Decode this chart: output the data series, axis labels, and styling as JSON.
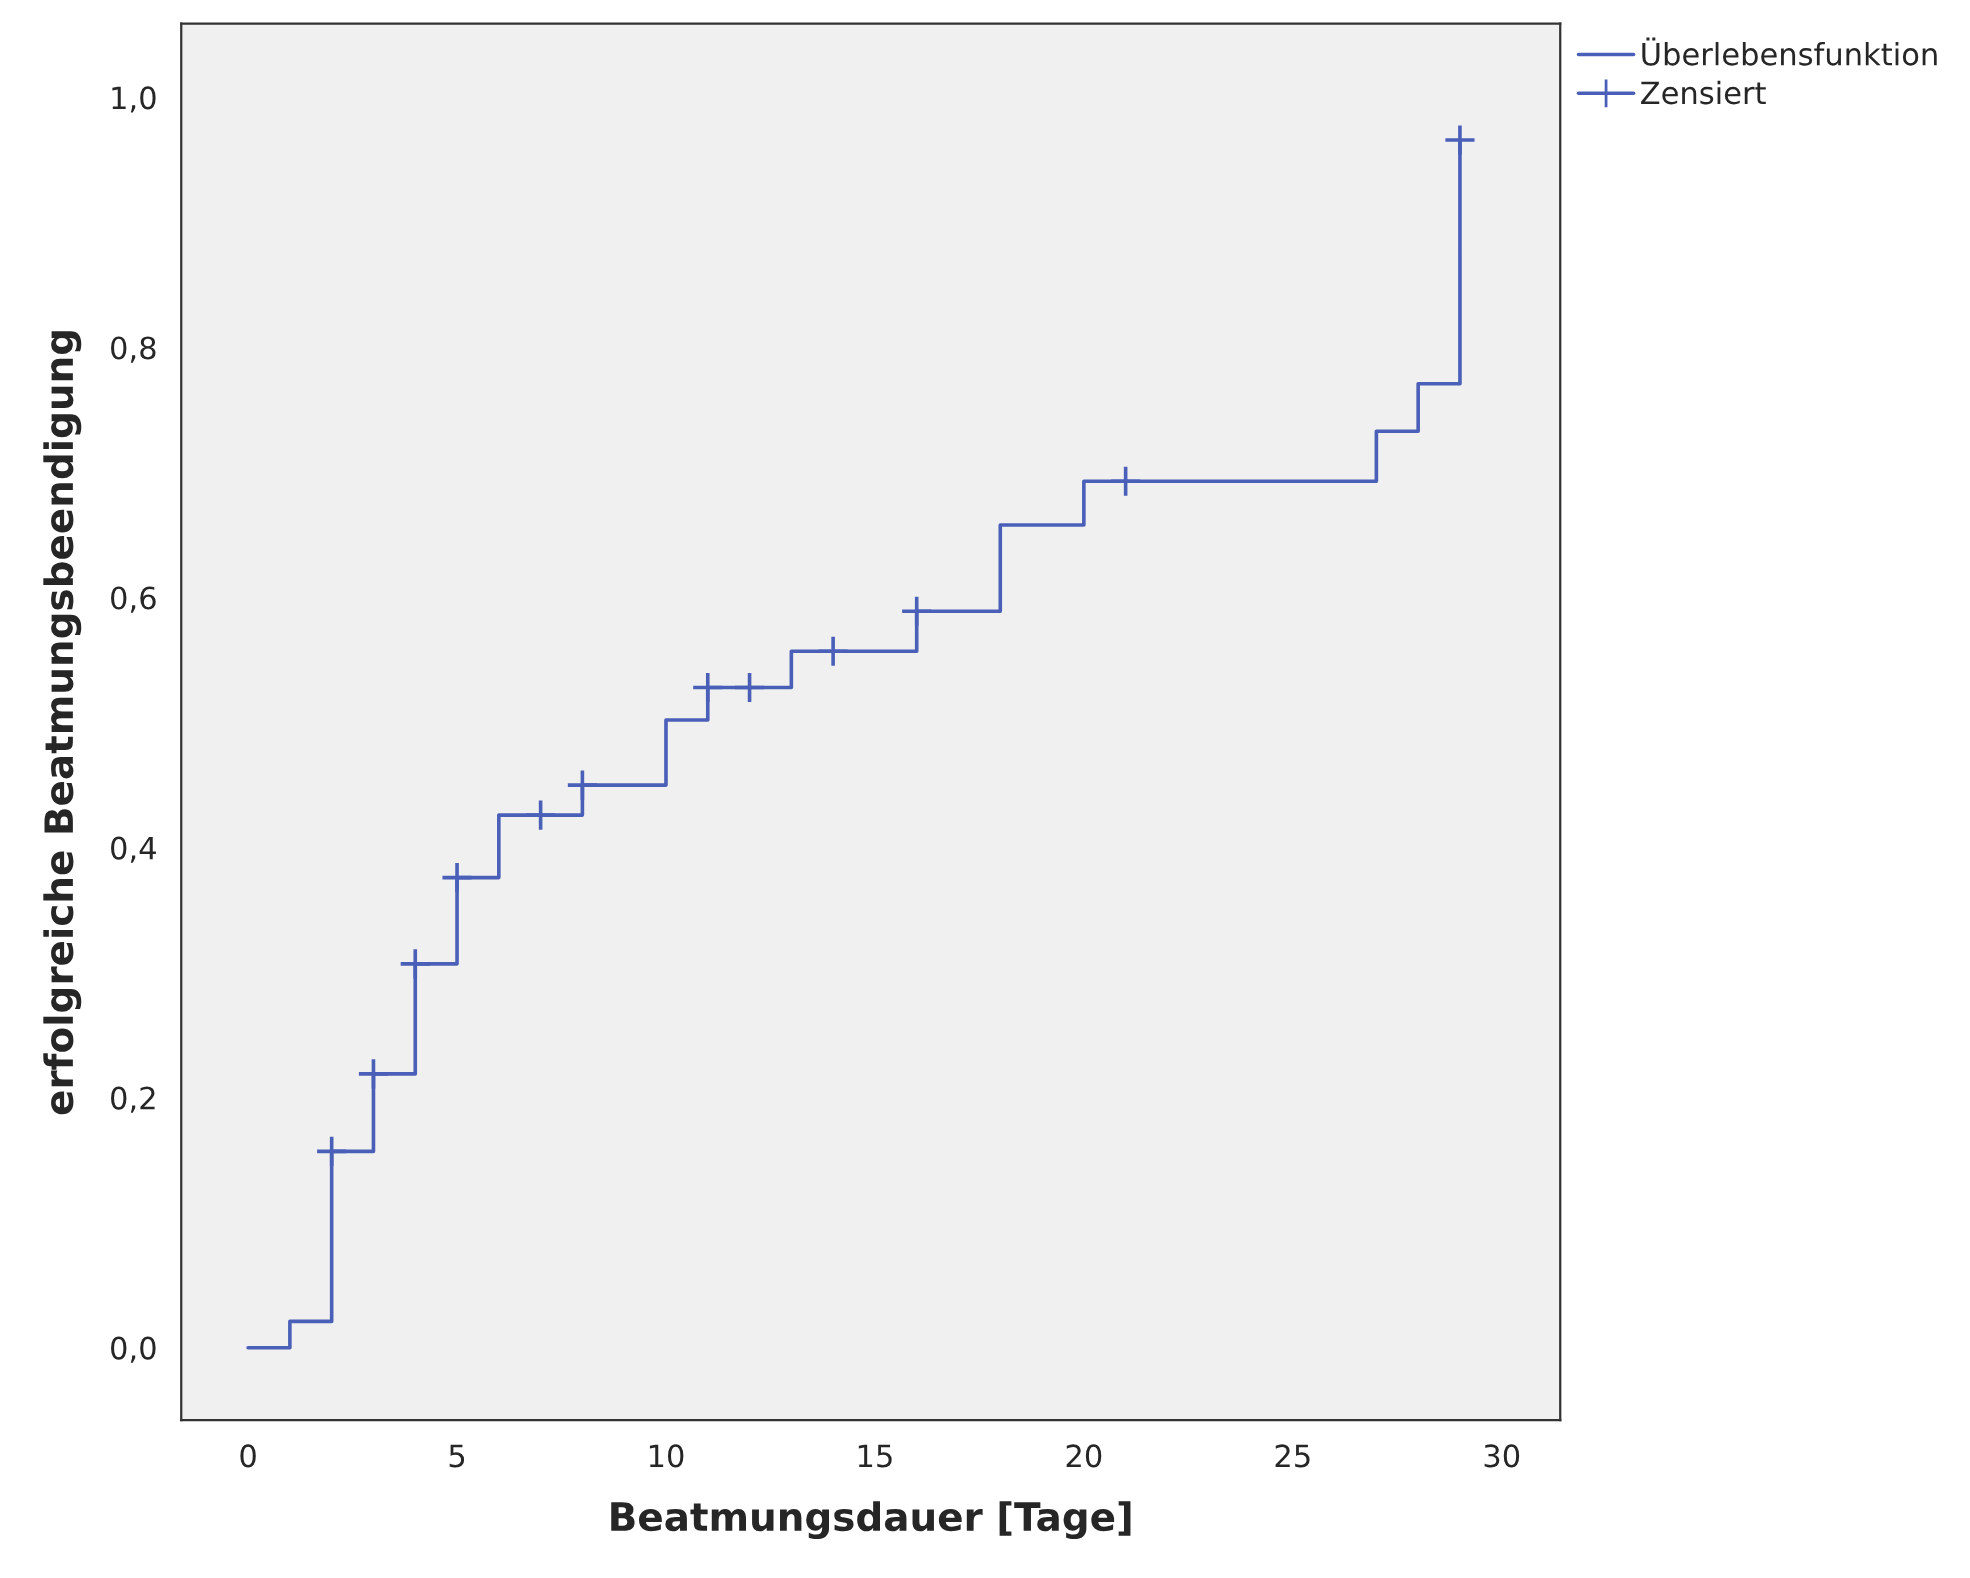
{
  "chart_data": {
    "type": "step",
    "xlabel": "Beatmungsdauer [Tage]",
    "ylabel": "erfolgreiche Beatmungsbeendigung",
    "xlim": [
      -1.6,
      31.4
    ],
    "ylim": [
      -0.058,
      1.059
    ],
    "xticks": [
      0,
      5,
      10,
      15,
      20,
      25,
      30
    ],
    "yticks": [
      {
        "value": 0,
        "label": "0,0"
      },
      {
        "value": 0.2,
        "label": "0,2"
      },
      {
        "value": 0.4,
        "label": "0,4"
      },
      {
        "value": 0.6,
        "label": "0,6"
      },
      {
        "value": 0.8,
        "label": "0,8"
      },
      {
        "value": 1,
        "label": "1,0"
      }
    ],
    "grid": false,
    "legend": "top right",
    "series": [
      {
        "name": "Überlebensfunktion",
        "color": "#4a5fb8",
        "marker": "none",
        "x": [
          0,
          1,
          2,
          3,
          4,
          5,
          6,
          8,
          10,
          11,
          13,
          16,
          18,
          20,
          27,
          28,
          29
        ],
        "values": [
          0,
          0.021,
          0.157,
          0.219,
          0.307,
          0.376,
          0.426,
          0.45,
          0.502,
          0.528,
          0.557,
          0.589,
          0.658,
          0.693,
          0.733,
          0.771,
          0.966
        ]
      },
      {
        "name": "Zensiert",
        "type": "scatter",
        "color": "#4a5fb8",
        "marker": "cross",
        "x": [
          2,
          3,
          4,
          5,
          7,
          8,
          11,
          12,
          14,
          16,
          21,
          29
        ],
        "values": [
          0.157,
          0.219,
          0.307,
          0.376,
          0.426,
          0.45,
          0.528,
          0.528,
          0.557,
          0.589,
          0.693,
          0.966
        ]
      }
    ]
  }
}
